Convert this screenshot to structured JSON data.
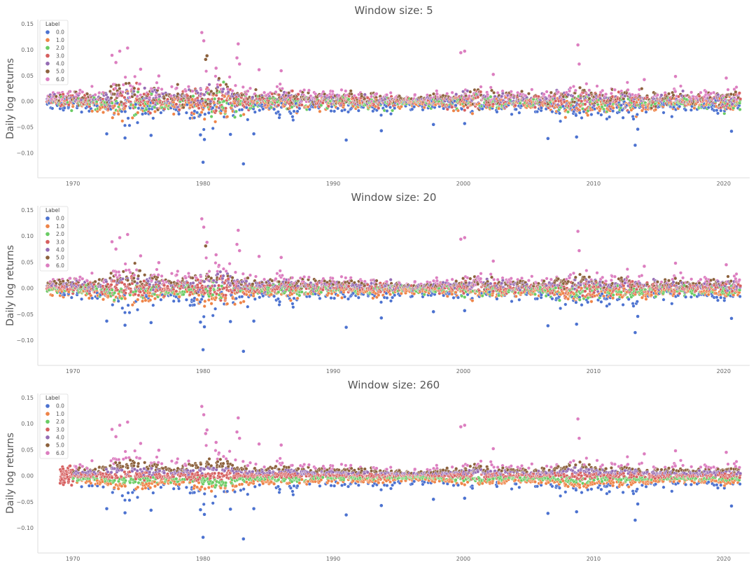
{
  "chart_data": [
    {
      "type": "scatter",
      "title": "Window size: 5",
      "xlabel": "",
      "ylabel": "Daily log returns",
      "xlim": [
        1967.3,
        1022.0
      ],
      "ylim": [
        -0.148,
        0.158
      ],
      "xticks": [
        1970,
        1980,
        1990,
        2000,
        2010,
        2020
      ],
      "yticks": [
        0.15,
        0.1,
        0.05,
        0.0,
        -0.05,
        -0.1
      ],
      "ytick_labels": [
        "0.15",
        "0.10",
        "0.05",
        "0.00",
        "−0.05",
        "−0.10"
      ],
      "legend": {
        "title": "Label",
        "position": "top-left",
        "entries": [
          "0.0",
          "1.0",
          "2.0",
          "3.0",
          "4.0",
          "5.0",
          "6.0"
        ]
      },
      "colors": [
        "#4c72d0",
        "#ee8448",
        "#6acc64",
        "#d65f5f",
        "#956cb4",
        "#8c613c",
        "#dc7ec0"
      ],
      "window": 5,
      "x_range": [
        1968.0,
        2021.3
      ],
      "highlights": [
        {
          "x": 1979.9,
          "y": 0.133,
          "label": 6
        },
        {
          "x": 1980.05,
          "y": 0.117,
          "label": 6
        },
        {
          "x": 1982.7,
          "y": 0.111,
          "label": 6
        },
        {
          "x": 2008.8,
          "y": 0.109,
          "label": 6
        },
        {
          "x": 1974.2,
          "y": 0.103,
          "label": 6
        },
        {
          "x": 1973.6,
          "y": 0.097,
          "label": 6
        },
        {
          "x": 2000.1,
          "y": 0.097,
          "label": 6
        },
        {
          "x": 1999.8,
          "y": 0.094,
          "label": 6
        },
        {
          "x": 1973.0,
          "y": 0.089,
          "label": 6
        },
        {
          "x": 1980.3,
          "y": 0.088,
          "label": 5
        },
        {
          "x": 1980.2,
          "y": 0.081,
          "label": 5
        },
        {
          "x": 1982.6,
          "y": 0.084,
          "label": 6
        },
        {
          "x": 1973.3,
          "y": 0.075,
          "label": 6
        },
        {
          "x": 1982.8,
          "y": 0.072,
          "label": 6
        },
        {
          "x": 2008.9,
          "y": 0.072,
          "label": 6
        },
        {
          "x": 1981.0,
          "y": 0.064,
          "label": 6
        },
        {
          "x": 1984.3,
          "y": 0.061,
          "label": 6
        },
        {
          "x": 1975.2,
          "y": 0.062,
          "label": 6
        },
        {
          "x": 1986.0,
          "y": 0.059,
          "label": 6
        },
        {
          "x": 1976.6,
          "y": 0.049,
          "label": 6
        },
        {
          "x": 2002.3,
          "y": 0.052,
          "label": 6
        },
        {
          "x": 2013.9,
          "y": 0.042,
          "label": 6
        },
        {
          "x": 2016.3,
          "y": 0.048,
          "label": 6
        },
        {
          "x": 2020.2,
          "y": 0.045,
          "label": 6
        },
        {
          "x": 1980.0,
          "y": -0.118,
          "label": 0
        },
        {
          "x": 1983.1,
          "y": -0.121,
          "label": 0
        },
        {
          "x": 2013.2,
          "y": -0.085,
          "label": 0
        },
        {
          "x": 1991.0,
          "y": -0.075,
          "label": 0
        },
        {
          "x": 1980.1,
          "y": -0.074,
          "label": 0
        },
        {
          "x": 1974.0,
          "y": -0.071,
          "label": 0
        },
        {
          "x": 2006.5,
          "y": -0.072,
          "label": 0
        },
        {
          "x": 2008.7,
          "y": -0.069,
          "label": 0
        },
        {
          "x": 1976.0,
          "y": -0.066,
          "label": 0
        },
        {
          "x": 1972.6,
          "y": -0.063,
          "label": 0
        },
        {
          "x": 1979.8,
          "y": -0.065,
          "label": 0
        },
        {
          "x": 1982.1,
          "y": -0.064,
          "label": 0
        },
        {
          "x": 1983.9,
          "y": -0.063,
          "label": 0
        },
        {
          "x": 1993.7,
          "y": -0.057,
          "label": 0
        },
        {
          "x": 2020.6,
          "y": -0.058,
          "label": 0
        },
        {
          "x": 2013.4,
          "y": -0.054,
          "label": 0
        },
        {
          "x": 1997.7,
          "y": -0.045,
          "label": 0
        },
        {
          "x": 2000.1,
          "y": -0.043,
          "label": 0
        }
      ]
    },
    {
      "type": "scatter",
      "title": "Window size: 20",
      "xlabel": "",
      "ylabel": "Daily log returns",
      "xlim": [
        1967.3,
        2022.0
      ],
      "ylim": [
        -0.148,
        0.158
      ],
      "xticks": [
        1970,
        1980,
        1990,
        2000,
        2010,
        2020
      ],
      "yticks": [
        0.15,
        0.1,
        0.05,
        0.0,
        -0.05,
        -0.1
      ],
      "ytick_labels": [
        "0.15",
        "0.10",
        "0.05",
        "0.00",
        "−0.05",
        "−0.10"
      ],
      "legend": {
        "title": "Label",
        "position": "top-left",
        "entries": [
          "0.0",
          "1.0",
          "2.0",
          "3.0",
          "4.0",
          "5.0",
          "6.0"
        ]
      },
      "colors": [
        "#4c72d0",
        "#ee8448",
        "#6acc64",
        "#d65f5f",
        "#956cb4",
        "#8c613c",
        "#dc7ec0"
      ],
      "window": 20,
      "x_range": [
        1968.0,
        2021.3
      ],
      "highlights": [
        {
          "x": 1979.9,
          "y": 0.133,
          "label": 6
        },
        {
          "x": 1980.05,
          "y": 0.117,
          "label": 6
        },
        {
          "x": 1982.7,
          "y": 0.111,
          "label": 6
        },
        {
          "x": 2008.8,
          "y": 0.109,
          "label": 6
        },
        {
          "x": 1974.2,
          "y": 0.103,
          "label": 6
        },
        {
          "x": 1973.6,
          "y": 0.097,
          "label": 6
        },
        {
          "x": 2000.1,
          "y": 0.097,
          "label": 6
        },
        {
          "x": 1999.8,
          "y": 0.094,
          "label": 6
        },
        {
          "x": 1973.0,
          "y": 0.089,
          "label": 6
        },
        {
          "x": 1980.3,
          "y": 0.088,
          "label": 6
        },
        {
          "x": 1980.2,
          "y": 0.081,
          "label": 5
        },
        {
          "x": 1982.6,
          "y": 0.084,
          "label": 6
        },
        {
          "x": 1973.3,
          "y": 0.075,
          "label": 6
        },
        {
          "x": 1982.8,
          "y": 0.072,
          "label": 6
        },
        {
          "x": 2008.9,
          "y": 0.072,
          "label": 6
        },
        {
          "x": 1981.0,
          "y": 0.064,
          "label": 6
        },
        {
          "x": 1984.3,
          "y": 0.061,
          "label": 6
        },
        {
          "x": 1975.2,
          "y": 0.062,
          "label": 6
        },
        {
          "x": 1986.0,
          "y": 0.059,
          "label": 6
        },
        {
          "x": 1976.6,
          "y": 0.049,
          "label": 6
        },
        {
          "x": 2002.3,
          "y": 0.052,
          "label": 6
        },
        {
          "x": 2013.9,
          "y": 0.042,
          "label": 6
        },
        {
          "x": 2016.3,
          "y": 0.048,
          "label": 6
        },
        {
          "x": 2020.2,
          "y": 0.045,
          "label": 6
        },
        {
          "x": 1980.0,
          "y": -0.118,
          "label": 0
        },
        {
          "x": 1983.1,
          "y": -0.121,
          "label": 0
        },
        {
          "x": 2013.2,
          "y": -0.085,
          "label": 0
        },
        {
          "x": 1991.0,
          "y": -0.075,
          "label": 0
        },
        {
          "x": 1980.1,
          "y": -0.074,
          "label": 0
        },
        {
          "x": 1974.0,
          "y": -0.071,
          "label": 0
        },
        {
          "x": 2006.5,
          "y": -0.072,
          "label": 0
        },
        {
          "x": 2008.7,
          "y": -0.069,
          "label": 0
        },
        {
          "x": 1976.0,
          "y": -0.066,
          "label": 0
        },
        {
          "x": 1972.6,
          "y": -0.063,
          "label": 0
        },
        {
          "x": 1979.8,
          "y": -0.065,
          "label": 0
        },
        {
          "x": 1982.1,
          "y": -0.064,
          "label": 0
        },
        {
          "x": 1983.9,
          "y": -0.063,
          "label": 0
        },
        {
          "x": 1993.7,
          "y": -0.057,
          "label": 0
        },
        {
          "x": 2020.6,
          "y": -0.058,
          "label": 0
        },
        {
          "x": 2013.4,
          "y": -0.054,
          "label": 0
        },
        {
          "x": 1997.7,
          "y": -0.045,
          "label": 0
        },
        {
          "x": 2000.1,
          "y": -0.043,
          "label": 0
        }
      ]
    },
    {
      "type": "scatter",
      "title": "Window size: 260",
      "xlabel": "",
      "ylabel": "Daily log returns",
      "xlim": [
        1967.3,
        2022.0
      ],
      "ylim": [
        -0.148,
        0.158
      ],
      "xticks": [
        1970,
        1980,
        1990,
        2000,
        2010,
        2020
      ],
      "yticks": [
        0.15,
        0.1,
        0.05,
        0.0,
        -0.05,
        -0.1
      ],
      "ytick_labels": [
        "0.15",
        "0.10",
        "0.05",
        "0.00",
        "−0.05",
        "−0.10"
      ],
      "legend": {
        "title": "Label",
        "position": "top-left",
        "entries": [
          "0.0",
          "1.0",
          "2.0",
          "3.0",
          "4.0",
          "5.0",
          "6.0"
        ]
      },
      "colors": [
        "#4c72d0",
        "#ee8448",
        "#6acc64",
        "#d65f5f",
        "#956cb4",
        "#8c613c",
        "#dc7ec0"
      ],
      "window": 260,
      "x_range": [
        1969.0,
        2021.3
      ],
      "highlights": [
        {
          "x": 1979.9,
          "y": 0.133,
          "label": 6
        },
        {
          "x": 1980.05,
          "y": 0.117,
          "label": 6
        },
        {
          "x": 1982.7,
          "y": 0.111,
          "label": 6
        },
        {
          "x": 2008.8,
          "y": 0.109,
          "label": 6
        },
        {
          "x": 1974.2,
          "y": 0.103,
          "label": 6
        },
        {
          "x": 1973.6,
          "y": 0.097,
          "label": 6
        },
        {
          "x": 2000.1,
          "y": 0.097,
          "label": 6
        },
        {
          "x": 1999.8,
          "y": 0.094,
          "label": 6
        },
        {
          "x": 1973.0,
          "y": 0.089,
          "label": 6
        },
        {
          "x": 1980.3,
          "y": 0.088,
          "label": 6
        },
        {
          "x": 1980.2,
          "y": 0.081,
          "label": 6
        },
        {
          "x": 1982.6,
          "y": 0.084,
          "label": 6
        },
        {
          "x": 1973.3,
          "y": 0.075,
          "label": 6
        },
        {
          "x": 1982.8,
          "y": 0.072,
          "label": 6
        },
        {
          "x": 2008.9,
          "y": 0.072,
          "label": 6
        },
        {
          "x": 1981.0,
          "y": 0.064,
          "label": 6
        },
        {
          "x": 1984.3,
          "y": 0.061,
          "label": 6
        },
        {
          "x": 1975.2,
          "y": 0.062,
          "label": 6
        },
        {
          "x": 1986.0,
          "y": 0.059,
          "label": 6
        },
        {
          "x": 1976.6,
          "y": 0.049,
          "label": 6
        },
        {
          "x": 2002.3,
          "y": 0.052,
          "label": 6
        },
        {
          "x": 2013.9,
          "y": 0.042,
          "label": 6
        },
        {
          "x": 2016.3,
          "y": 0.048,
          "label": 6
        },
        {
          "x": 2020.2,
          "y": 0.045,
          "label": 6
        },
        {
          "x": 1980.0,
          "y": -0.118,
          "label": 0
        },
        {
          "x": 1983.1,
          "y": -0.121,
          "label": 0
        },
        {
          "x": 2013.2,
          "y": -0.085,
          "label": 0
        },
        {
          "x": 1991.0,
          "y": -0.075,
          "label": 0
        },
        {
          "x": 1980.1,
          "y": -0.074,
          "label": 0
        },
        {
          "x": 1974.0,
          "y": -0.071,
          "label": 0
        },
        {
          "x": 2006.5,
          "y": -0.072,
          "label": 0
        },
        {
          "x": 2008.7,
          "y": -0.069,
          "label": 0
        },
        {
          "x": 1976.0,
          "y": -0.066,
          "label": 0
        },
        {
          "x": 1972.6,
          "y": -0.063,
          "label": 0
        },
        {
          "x": 1979.8,
          "y": -0.065,
          "label": 0
        },
        {
          "x": 1982.1,
          "y": -0.064,
          "label": 0
        },
        {
          "x": 1983.9,
          "y": -0.063,
          "label": 0
        },
        {
          "x": 1993.7,
          "y": -0.057,
          "label": 0
        },
        {
          "x": 2020.6,
          "y": -0.058,
          "label": 0
        },
        {
          "x": 2013.4,
          "y": -0.054,
          "label": 0
        },
        {
          "x": 1997.7,
          "y": -0.045,
          "label": 0
        },
        {
          "x": 2000.1,
          "y": -0.043,
          "label": 0
        }
      ]
    }
  ]
}
